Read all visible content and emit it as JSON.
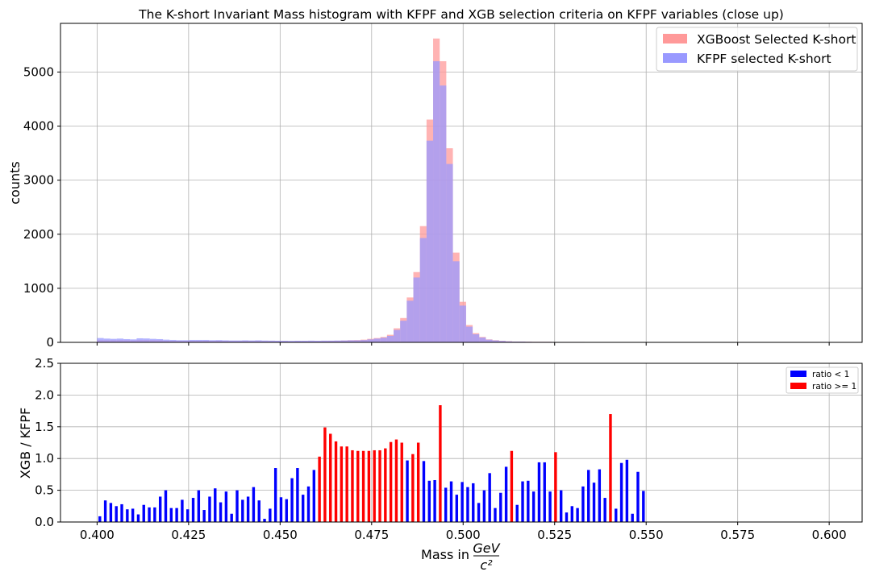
{
  "chart_data": [
    {
      "type": "bar",
      "title": "The K-short Invariant Mass histogram with KFPF and XGB selection criteria on KFPF variables (close up)",
      "xlabel": "",
      "ylabel": "counts",
      "xlim": [
        0.39,
        0.609
      ],
      "ylim": [
        0,
        5900
      ],
      "grid": true,
      "legend_position": "top-right",
      "xticks": [
        "0.400",
        "0.425",
        "0.450",
        "0.475",
        "0.500",
        "0.525",
        "0.550",
        "0.575",
        "0.600"
      ],
      "yticks": [
        "0",
        "1000",
        "2000",
        "3000",
        "4000",
        "5000"
      ],
      "bin_width": 0.0018,
      "x_start": 0.4,
      "series": [
        {
          "name": "XGBoost Selected K-short",
          "color": "#ff9999",
          "values": [
            40,
            38,
            38,
            40,
            38,
            35,
            42,
            42,
            40,
            38,
            30,
            28,
            25,
            25,
            28,
            28,
            30,
            25,
            28,
            25,
            22,
            22,
            25,
            22,
            25,
            22,
            22,
            20,
            22,
            18,
            20,
            20,
            22,
            22,
            25,
            28,
            30,
            35,
            40,
            42,
            50,
            65,
            80,
            100,
            140,
            260,
            450,
            830,
            1300,
            2150,
            4120,
            5620,
            5200,
            3590,
            1660,
            750,
            320,
            170,
            100,
            55,
            40,
            28,
            20,
            15,
            15,
            12,
            10,
            10,
            10,
            8,
            8,
            8,
            8,
            8,
            6,
            6,
            6,
            6,
            5,
            5,
            5,
            5,
            5,
            5,
            4,
            4,
            4,
            4,
            4,
            4,
            4,
            4,
            4,
            4,
            4,
            4,
            4,
            4,
            3,
            3,
            3,
            3,
            3,
            3,
            3,
            3,
            3,
            3,
            3,
            3,
            3
          ]
        },
        {
          "name": "KFPF selected K-short",
          "color": "#9999ff",
          "values": [
            80,
            70,
            65,
            70,
            60,
            55,
            75,
            72,
            65,
            60,
            50,
            45,
            40,
            40,
            45,
            45,
            45,
            40,
            42,
            38,
            35,
            35,
            38,
            35,
            38,
            34,
            32,
            30,
            30,
            28,
            30,
            30,
            32,
            30,
            32,
            32,
            34,
            35,
            38,
            38,
            42,
            55,
            70,
            85,
            120,
            230,
            400,
            770,
            1200,
            1930,
            3730,
            5200,
            4750,
            3300,
            1500,
            680,
            290,
            150,
            90,
            50,
            36,
            26,
            18,
            14,
            14,
            11,
            9,
            9,
            9,
            8,
            8,
            8,
            8,
            8,
            6,
            6,
            6,
            6,
            5,
            5,
            5,
            5,
            5,
            5,
            4,
            4,
            4,
            4,
            4,
            4,
            4,
            4,
            4,
            4,
            4,
            4,
            4,
            4,
            3,
            3,
            3,
            3,
            3,
            3,
            3,
            3,
            3,
            3,
            3,
            3,
            3
          ]
        }
      ]
    },
    {
      "type": "bar",
      "title": "",
      "xlabel": "Mass in",
      "xlabel_fraction": {
        "numerator": "GeV",
        "denominator": "c²"
      },
      "ylabel": "XGB / KFPF",
      "xlim": [
        0.39,
        0.609
      ],
      "ylim": [
        0,
        2.5
      ],
      "grid": true,
      "legend_position": "top-right",
      "xticks": [
        "0.400",
        "0.425",
        "0.450",
        "0.475",
        "0.500",
        "0.525",
        "0.550",
        "0.575",
        "0.600"
      ],
      "yticks": [
        "0.0",
        "0.5",
        "1.0",
        "1.5",
        "2.0",
        "2.5"
      ],
      "bin_width": 0.0015,
      "x_start": 0.4,
      "threshold": 1,
      "series": [
        {
          "name": "ratio < 1",
          "color": "#0000ff"
        },
        {
          "name": "ratio >= 1",
          "color": "#ff0000"
        }
      ],
      "values": [
        0.09,
        0.34,
        0.3,
        0.25,
        0.28,
        0.2,
        0.21,
        0.12,
        0.27,
        0.23,
        0.23,
        0.4,
        0.5,
        0.22,
        0.22,
        0.35,
        0.2,
        0.38,
        0.5,
        0.19,
        0.4,
        0.53,
        0.31,
        0.48,
        0.13,
        0.5,
        0.35,
        0.4,
        0.55,
        0.34,
        0.05,
        0.21,
        0.85,
        0.39,
        0.36,
        0.69,
        0.85,
        0.43,
        0.56,
        0.82,
        1.03,
        1.49,
        1.39,
        1.27,
        1.19,
        1.19,
        1.13,
        1.12,
        1.12,
        1.12,
        1.13,
        1.13,
        1.16,
        1.26,
        1.3,
        1.25,
        0.97,
        1.07,
        1.25,
        0.96,
        0.65,
        0.66,
        1.84,
        0.54,
        0.64,
        0.43,
        0.63,
        0.55,
        0.61,
        0.3,
        0.5,
        0.77,
        0.22,
        0.46,
        0.87,
        1.12,
        0.27,
        0.64,
        0.65,
        0.48,
        0.94,
        0.94,
        0.48,
        1.1,
        0.5,
        0.15,
        0.25,
        0.22,
        0.56,
        0.82,
        0.62,
        0.83,
        0.38,
        1.7,
        0.21,
        0.93,
        0.98,
        0.13,
        0.79,
        0.49
      ]
    }
  ]
}
